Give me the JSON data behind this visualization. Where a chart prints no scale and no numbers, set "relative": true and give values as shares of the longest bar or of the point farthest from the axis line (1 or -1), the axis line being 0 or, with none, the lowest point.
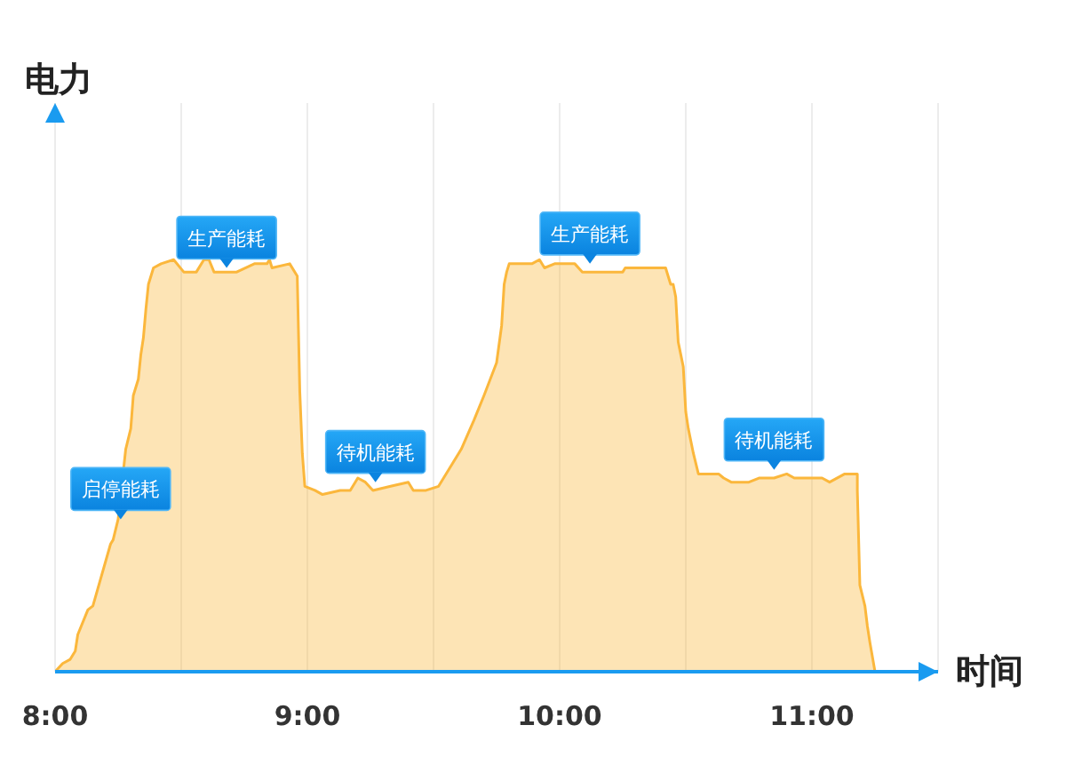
{
  "chart_data": {
    "type": "area",
    "relative": true,
    "xlabel": "时间",
    "ylabel": "电力",
    "x": [
      8.0,
      8.03,
      8.06,
      8.08,
      8.09,
      8.13,
      8.15,
      8.22,
      8.23,
      8.25,
      8.28,
      8.3,
      8.31,
      8.33,
      8.34,
      8.35,
      8.36,
      8.37,
      8.39,
      8.42,
      8.47,
      8.51,
      8.56,
      8.59,
      8.61,
      8.63,
      8.72,
      8.79,
      8.84,
      8.85,
      8.86,
      8.93,
      8.96,
      8.97,
      8.98,
      8.99,
      9.03,
      9.06,
      9.13,
      9.17,
      9.2,
      9.23,
      9.26,
      9.33,
      9.4,
      9.42,
      9.47,
      9.52,
      9.56,
      9.61,
      9.66,
      9.7,
      9.75,
      9.77,
      9.78,
      9.79,
      9.8,
      9.89,
      9.92,
      9.94,
      9.98,
      10.06,
      10.09,
      10.12,
      10.25,
      10.26,
      10.42,
      10.44,
      10.45,
      10.46,
      10.47,
      10.48,
      10.49,
      10.5,
      10.51,
      10.53,
      10.55,
      10.63,
      10.65,
      10.68,
      10.75,
      10.79,
      10.85,
      10.9,
      10.93,
      11.04,
      11.07,
      11.13,
      11.18,
      11.18,
      11.19,
      11.21,
      11.22,
      11.23,
      11.25
    ],
    "series": [
      {
        "color": "#fbb73c",
        "values": [
          0,
          0.02,
          0.03,
          0.05,
          0.09,
          0.15,
          0.16,
          0.31,
          0.32,
          0.37,
          0.54,
          0.59,
          0.67,
          0.71,
          0.77,
          0.81,
          0.88,
          0.94,
          0.98,
          0.99,
          1.0,
          0.97,
          0.97,
          1.0,
          1.0,
          0.97,
          0.97,
          0.99,
          0.99,
          1.0,
          0.98,
          0.99,
          0.96,
          0.68,
          0.53,
          0.45,
          0.44,
          0.43,
          0.44,
          0.44,
          0.47,
          0.46,
          0.44,
          0.45,
          0.46,
          0.44,
          0.44,
          0.45,
          0.49,
          0.54,
          0.61,
          0.67,
          0.75,
          0.84,
          0.94,
          0.97,
          0.99,
          0.99,
          1.0,
          0.98,
          0.99,
          0.99,
          0.97,
          0.97,
          0.97,
          0.98,
          0.98,
          0.94,
          0.94,
          0.91,
          0.8,
          0.77,
          0.74,
          0.63,
          0.59,
          0.53,
          0.48,
          0.48,
          0.47,
          0.46,
          0.46,
          0.47,
          0.47,
          0.48,
          0.47,
          0.47,
          0.46,
          0.48,
          0.48,
          0.44,
          0.21,
          0.16,
          0.11,
          0.07,
          0
        ]
      }
    ],
    "xlim": [
      8,
      11.5
    ],
    "xticks": [
      {
        "value": 8,
        "label": "8:00"
      },
      {
        "value": 8.5,
        "label": null
      },
      {
        "value": 9,
        "label": "9:00"
      },
      {
        "value": 9.5,
        "label": null
      },
      {
        "value": 10,
        "label": "10:00"
      },
      {
        "value": 10.5,
        "label": null
      },
      {
        "value": 11,
        "label": "11:00"
      }
    ],
    "grid": "x",
    "annotations": [
      {
        "text": "启停能耗",
        "x": 8.26,
        "y": 0.37
      },
      {
        "text": "生产能耗",
        "x": 8.68,
        "y": 0.98
      },
      {
        "text": "待机能耗",
        "x": 9.27,
        "y": 0.46
      },
      {
        "text": "生产能耗",
        "x": 10.12,
        "y": 0.99
      },
      {
        "text": "待机能耗",
        "x": 10.85,
        "y": 0.49
      }
    ]
  }
}
